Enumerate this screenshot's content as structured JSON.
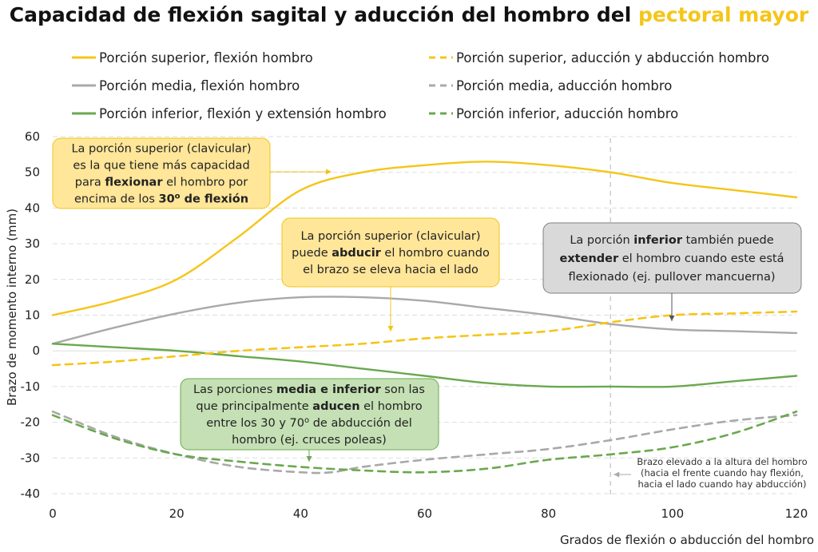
{
  "title_main": "Capacidad de flexión sagital y aducción del hombro del ",
  "title_highlight": "pectoral mayor",
  "colors": {
    "superior": "#f5c518",
    "media": "#a9a9a9",
    "inferior": "#6aa84f",
    "note_line": "#cccccc"
  },
  "chart_data": {
    "type": "line",
    "xlabel": "Grados de flexión o abducción del hombro",
    "ylabel": "Brazo de momento interno (mm)",
    "xlim": [
      0,
      120
    ],
    "ylim": [
      -40,
      60
    ],
    "xticks": [
      0,
      20,
      40,
      60,
      80,
      100,
      120
    ],
    "yticks": [
      -40,
      -30,
      -20,
      -10,
      0,
      10,
      20,
      30,
      40,
      50,
      60
    ],
    "grid": "horizontal dashed",
    "legend_position": "top",
    "series": [
      {
        "name": "Porción superior, flexión hombro",
        "color": "superior",
        "dash": false,
        "x": [
          0,
          10,
          20,
          30,
          40,
          50,
          60,
          70,
          80,
          90,
          100,
          110,
          120
        ],
        "y": [
          10,
          14,
          20,
          32,
          45,
          50,
          52,
          53,
          52,
          50,
          47,
          45,
          43
        ]
      },
      {
        "name": "Porción media, flexión hombro",
        "color": "media",
        "dash": false,
        "x": [
          0,
          10,
          20,
          30,
          40,
          50,
          60,
          70,
          80,
          90,
          100,
          110,
          120
        ],
        "y": [
          2,
          6.5,
          10.5,
          13.5,
          15,
          15,
          14,
          12,
          10,
          7.5,
          6,
          5.5,
          5
        ]
      },
      {
        "name": "Porción inferior, flexión y extensión hombro",
        "color": "inferior",
        "dash": false,
        "x": [
          0,
          10,
          20,
          30,
          40,
          50,
          60,
          70,
          80,
          90,
          100,
          110,
          120
        ],
        "y": [
          2,
          1,
          0,
          -1.5,
          -3,
          -5,
          -7,
          -9,
          -10,
          -10,
          -10,
          -8.5,
          -7
        ]
      },
      {
        "name": "Porción superior, aducción y abducción hombro",
        "color": "superior",
        "dash": true,
        "x": [
          0,
          10,
          20,
          30,
          40,
          50,
          60,
          70,
          80,
          90,
          100,
          110,
          120
        ],
        "y": [
          -4,
          -3,
          -1.5,
          0,
          1,
          2,
          3.5,
          4.5,
          5.5,
          8,
          10,
          10.5,
          11
        ]
      },
      {
        "name": "Porción media, aducción hombro",
        "color": "media",
        "dash": true,
        "x": [
          0,
          10,
          20,
          30,
          40,
          45,
          50,
          60,
          70,
          80,
          90,
          100,
          110,
          120
        ],
        "y": [
          -17,
          -24,
          -29,
          -32.5,
          -34,
          -34,
          -32.5,
          -30.5,
          -29,
          -27.5,
          -25,
          -22,
          -19.5,
          -18
        ]
      },
      {
        "name": "Porción inferior, aducción hombro",
        "color": "inferior",
        "dash": true,
        "x": [
          0,
          10,
          20,
          30,
          40,
          50,
          60,
          70,
          80,
          90,
          100,
          110,
          120
        ],
        "y": [
          -18,
          -24.5,
          -29,
          -31,
          -32.5,
          -33.5,
          -34,
          -33,
          -30.5,
          -29,
          -27,
          -23,
          -17
        ]
      }
    ],
    "reference_line": {
      "x": 90,
      "label_lines": [
        "Brazo elevado a la altura del hombro",
        "(hacia el frente cuando hay flexión,",
        "hacia el lado cuando hay abducción)"
      ]
    }
  },
  "annotations": [
    {
      "id": "annot-superior-flexion",
      "lines": [
        [
          {
            "t": "La porción superior (clavicular)",
            "b": false
          }
        ],
        [
          {
            "t": "es la que tiene más capacidad",
            "b": false
          }
        ],
        [
          {
            "t": "para ",
            "b": false
          },
          {
            "t": "flexionar",
            "b": true
          },
          {
            "t": " el hombro por",
            "b": false
          }
        ],
        [
          {
            "t": "encima de los ",
            "b": false
          },
          {
            "t": "30",
            "b": true
          },
          {
            "t": "o",
            "b": true,
            "sup": true
          },
          {
            "t": " de flexión",
            "b": true
          }
        ]
      ],
      "fill": "#ffe699",
      "stroke": "#f0c419"
    },
    {
      "id": "annot-superior-abduccion",
      "lines": [
        [
          {
            "t": "La porción superior (clavicular)",
            "b": false
          }
        ],
        [
          {
            "t": "puede ",
            "b": false
          },
          {
            "t": "abducir",
            "b": true
          },
          {
            "t": " el hombro cuando",
            "b": false
          }
        ],
        [
          {
            "t": "el brazo se eleva hacia el lado",
            "b": false
          }
        ]
      ],
      "fill": "#ffe699",
      "stroke": "#f0c419"
    },
    {
      "id": "annot-inferior-extension",
      "lines": [
        [
          {
            "t": "La porción ",
            "b": false
          },
          {
            "t": "inferior",
            "b": true
          },
          {
            "t": " también puede",
            "b": false
          }
        ],
        [
          {
            "t": "extender",
            "b": true
          },
          {
            "t": " el hombro cuando este está",
            "b": false
          }
        ],
        [
          {
            "t": "flexionado (ej. pullover mancuerna)",
            "b": false
          }
        ]
      ],
      "fill": "#d9d9d9",
      "stroke": "#7f7f7f"
    },
    {
      "id": "annot-media-inferior-aduccion",
      "lines": [
        [
          {
            "t": "Las porciones ",
            "b": false
          },
          {
            "t": "media e inferior",
            "b": true
          },
          {
            "t": " son las",
            "b": false
          }
        ],
        [
          {
            "t": "que principalmente ",
            "b": false
          },
          {
            "t": "aducen",
            "b": true
          },
          {
            "t": " el hombro",
            "b": false
          }
        ],
        [
          {
            "t": "entre los 30 y 70",
            "b": false
          },
          {
            "t": "o",
            "b": false,
            "sup": true
          },
          {
            "t": " de abducción del",
            "b": false
          }
        ],
        [
          {
            "t": "hombro (ej. cruces poleas)",
            "b": false
          }
        ]
      ],
      "fill": "#c5e0b4",
      "stroke": "#6aa84f"
    }
  ]
}
